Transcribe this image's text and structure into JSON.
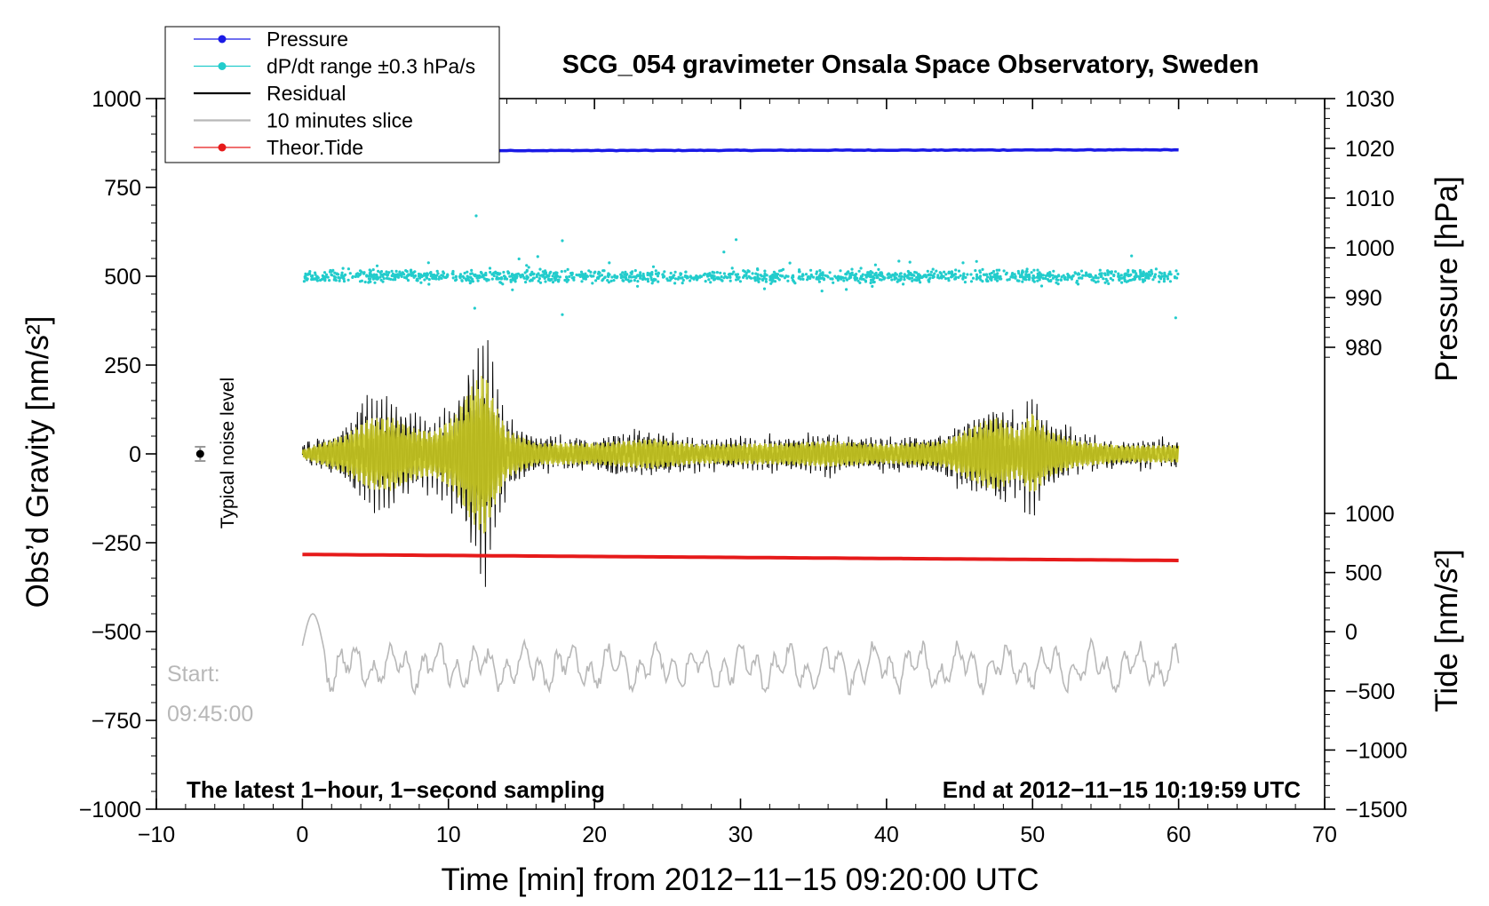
{
  "chart_data": {
    "type": "line",
    "title": "SCG_054 gravimeter Onsala Space Observatory, Sweden",
    "xlabel": "Time [min] from 2012−11−15 09:20:00 UTC",
    "ylabel_left": "Obs’d Gravity [nm/s²]",
    "ylabel_pressure": "Pressure [hPa]",
    "ylabel_tide": "Tide [nm/s²]",
    "xlim": [
      -10,
      70
    ],
    "ylim": [
      -1000,
      1000
    ],
    "pressure_ylim": [
      970,
      1030
    ],
    "tide_ylim": [
      -1500,
      1000
    ],
    "x_ticks": [
      "−10",
      "0",
      "10",
      "20",
      "30",
      "40",
      "50",
      "60",
      "70"
    ],
    "y_ticks_left": [
      "1000",
      "750",
      "500",
      "250",
      "0",
      "−250",
      "−500",
      "−750",
      "−1000"
    ],
    "pressure_ticks": [
      "1030",
      "1020",
      "1010",
      "1000",
      "990",
      "980"
    ],
    "tide_ticks": [
      "1000",
      "500",
      "0",
      "−500",
      "−1000",
      "−1500"
    ],
    "legend": {
      "placement": "top-left",
      "entries": [
        {
          "label": "Pressure",
          "color": "#1a1ae6",
          "marker": true
        },
        {
          "label": "dP/dt range ±0.3 hPa/s",
          "color": "#22cccc",
          "marker": true
        },
        {
          "label": "Residual",
          "color": "#000000",
          "marker": false
        },
        {
          "label": "10 minutes slice",
          "color": "#b8b8b8",
          "marker": false
        },
        {
          "label": "Theor.Tide",
          "color": "#e61a1a",
          "marker": true
        }
      ]
    },
    "annotations": {
      "noise_label": "Typical noise level",
      "start_label": "Start:",
      "start_time": "09:45:00",
      "bottom_left": "The latest 1−hour, 1−second sampling",
      "bottom_right": "End at 2012−11−15 10:19:59 UTC"
    },
    "series": [
      {
        "name": "Pressure",
        "unit": "hPa",
        "x": [
          0,
          60
        ],
        "y": [
          1019.5,
          1019.7
        ],
        "color": "#1a1ae6"
      },
      {
        "name": "dP/dt range ±0.3 hPa/s",
        "center": 500,
        "spread": 30,
        "color": "#22cccc"
      },
      {
        "name": "Residual",
        "center": 0,
        "color": "#000000",
        "envelope_x": [
          0,
          3,
          4.5,
          6,
          7.5,
          9,
          10.5,
          11.5,
          12.5,
          13,
          14,
          16,
          20,
          24,
          27,
          33,
          36,
          40,
          44,
          46,
          47.5,
          49,
          50,
          51,
          53,
          56,
          60
        ],
        "envelope_y": [
          20,
          90,
          160,
          170,
          120,
          100,
          180,
          300,
          380,
          260,
          110,
          50,
          50,
          70,
          45,
          50,
          60,
          45,
          60,
          130,
          170,
          110,
          190,
          110,
          60,
          40,
          40
        ]
      },
      {
        "name": "10 minutes slice",
        "center": -600,
        "amplitude": 60,
        "color": "#b8b8b8"
      },
      {
        "name": "Theor.Tide",
        "x": [
          0,
          60
        ],
        "y": [
          -283,
          -300
        ],
        "color": "#e61a1a"
      }
    ],
    "noise_marker": {
      "x": -7,
      "y": 0,
      "err": 20
    },
    "colors": {
      "filtered_residual": "#cccc22"
    }
  }
}
